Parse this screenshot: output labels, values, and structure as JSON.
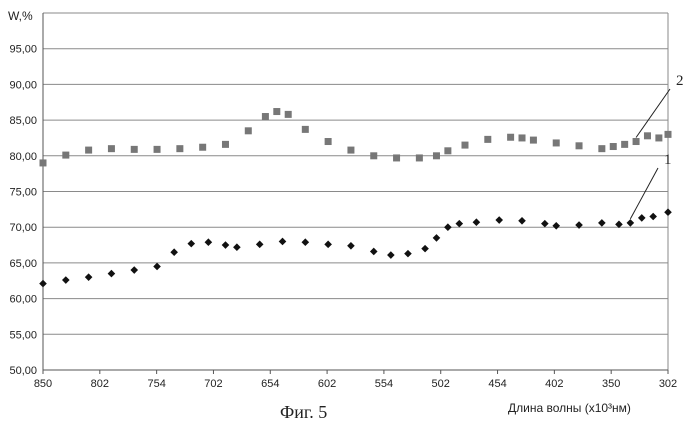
{
  "chart_data": {
    "type": "scatter",
    "y_axis_label": "W,%",
    "x_axis_label": "Длина волны (х10³нм)",
    "caption": "Фиг. 5",
    "ylim": [
      50,
      100
    ],
    "y_ticks": [
      "50,00",
      "55,00",
      "60,00",
      "65,00",
      "70,00",
      "75,00",
      "80,00",
      "85,00",
      "90,00",
      "95,00"
    ],
    "x_ticks": [
      "850",
      "802",
      "754",
      "702",
      "654",
      "602",
      "554",
      "502",
      "454",
      "402",
      "350",
      "302"
    ],
    "x_reversed": true,
    "grid": "horizontal",
    "series": [
      {
        "name": "2",
        "marker": "square",
        "color": "#777777",
        "x": [
          850,
          830,
          810,
          790,
          770,
          750,
          730,
          710,
          690,
          670,
          655,
          645,
          635,
          620,
          600,
          580,
          560,
          540,
          520,
          505,
          495,
          480,
          460,
          440,
          430,
          420,
          400,
          380,
          360,
          350,
          340,
          330,
          320,
          310,
          302
        ],
        "values": [
          79.0,
          80.1,
          80.8,
          81.0,
          80.9,
          80.9,
          81.0,
          81.2,
          81.6,
          83.5,
          85.5,
          86.2,
          85.8,
          83.7,
          82.0,
          80.8,
          80.0,
          79.7,
          79.7,
          80.0,
          80.7,
          81.5,
          82.3,
          82.6,
          82.5,
          82.2,
          81.8,
          81.4,
          81.0,
          81.3,
          81.6,
          82.0,
          82.8,
          82.5,
          83.0
        ]
      },
      {
        "name": "1",
        "marker": "diamond",
        "color": "#111111",
        "x": [
          850,
          830,
          810,
          790,
          770,
          750,
          735,
          720,
          705,
          690,
          680,
          660,
          640,
          620,
          600,
          580,
          560,
          545,
          530,
          515,
          505,
          495,
          485,
          470,
          450,
          430,
          410,
          400,
          380,
          360,
          345,
          335,
          325,
          315,
          302
        ],
        "values": [
          62.1,
          62.6,
          63.0,
          63.5,
          64.0,
          64.5,
          66.5,
          67.7,
          67.9,
          67.5,
          67.2,
          67.6,
          68.0,
          67.9,
          67.6,
          67.4,
          66.6,
          66.1,
          66.3,
          67.0,
          68.5,
          70.0,
          70.5,
          70.7,
          71.0,
          70.9,
          70.5,
          70.2,
          70.3,
          70.6,
          70.4,
          70.6,
          71.3,
          71.5,
          72.1
        ]
      }
    ]
  }
}
